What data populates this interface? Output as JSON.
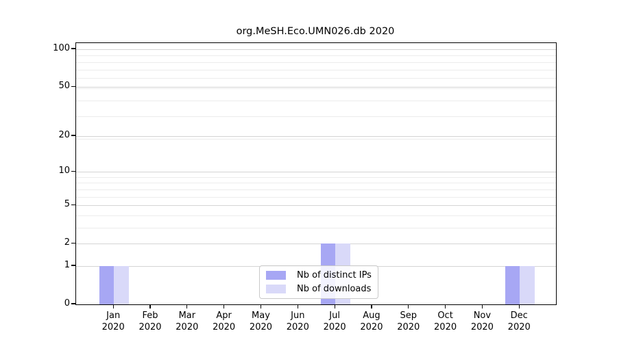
{
  "title": "org.MeSH.Eco.UMN026.db 2020",
  "chart_data": {
    "type": "bar",
    "title": "org.MeSH.Eco.UMN026.db 2020",
    "categories": [
      "Jan",
      "Feb",
      "Mar",
      "Apr",
      "May",
      "Jun",
      "Jul",
      "Aug",
      "Sep",
      "Oct",
      "Nov",
      "Dec"
    ],
    "year_label": "2020",
    "series": [
      {
        "name": "Nb of distinct IPs",
        "color": "#a7a7f4",
        "values": [
          1,
          0,
          0,
          0,
          0,
          0,
          2,
          0,
          0,
          0,
          0,
          1
        ]
      },
      {
        "name": "Nb of downloads",
        "color": "#d9d9f9",
        "values": [
          1,
          0,
          0,
          0,
          0,
          0,
          2,
          0,
          0,
          0,
          0,
          1
        ]
      }
    ],
    "y_axis": {
      "scale": "log1p",
      "ticks": [
        0,
        1,
        2,
        5,
        10,
        20,
        50,
        100
      ],
      "minor_ticks": [
        3,
        4,
        6,
        7,
        8,
        9,
        19,
        29,
        39,
        49,
        59,
        69,
        79,
        89
      ],
      "max_value": 112,
      "ylim": [
        0,
        112
      ]
    },
    "x_axis": {
      "tick_label_lines": 2
    },
    "legend": {
      "position": "lower center",
      "entries": [
        "Nb of distinct IPs",
        "Nb of downloads"
      ]
    },
    "grid": true,
    "colors": {
      "major_grid": "#d4d4d4",
      "minor_grid": "#ececec",
      "spine": "#000000",
      "background": "#ffffff",
      "legend_border": "#c9c9c9"
    }
  }
}
